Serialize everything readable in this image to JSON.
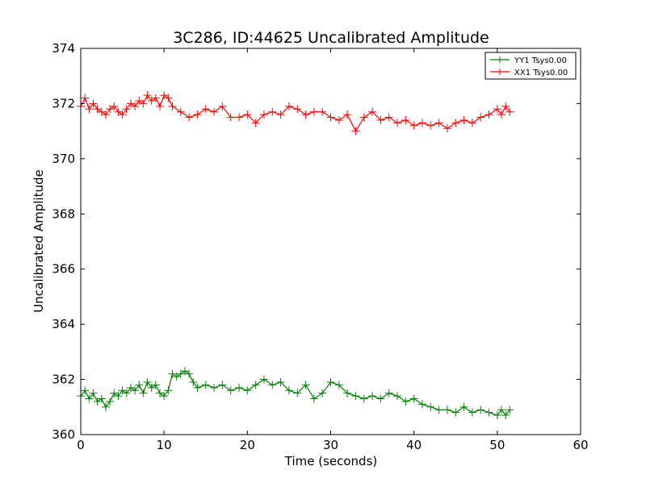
{
  "chart_data": {
    "type": "line",
    "title": "3C286, ID:44625 Uncalibrated Amplitude",
    "xlabel": "Time (seconds)",
    "ylabel": "Uncalibrated Amplitude",
    "xlim": [
      0,
      60
    ],
    "ylim": [
      360,
      374
    ],
    "xticks": [
      0,
      10,
      20,
      30,
      40,
      50,
      60
    ],
    "yticks": [
      360,
      362,
      364,
      366,
      368,
      370,
      372,
      374
    ],
    "grid": false,
    "legend_position": "top-right",
    "marker": "+",
    "series": [
      {
        "name": "YY1 Tsys0.00",
        "color": "#008000",
        "x": [
          0,
          0.5,
          1,
          1.5,
          2,
          2.5,
          3,
          3.5,
          4,
          4.5,
          5,
          5.5,
          6,
          6.5,
          7,
          7.5,
          8,
          8.5,
          9,
          9.5,
          10,
          10.5,
          11,
          11.5,
          12,
          12.5,
          13,
          13.5,
          14,
          15,
          16,
          17,
          18,
          19,
          20,
          21,
          22,
          23,
          24,
          25,
          26,
          27,
          28,
          29,
          30,
          31,
          32,
          33,
          34,
          35,
          36,
          37,
          38,
          39,
          40,
          41,
          42,
          43,
          44,
          45,
          46,
          47,
          48,
          49,
          50,
          50.5,
          51,
          51.5
        ],
        "y": [
          361.4,
          361.6,
          361.3,
          361.5,
          361.2,
          361.3,
          361.0,
          361.2,
          361.5,
          361.4,
          361.6,
          361.5,
          361.7,
          361.6,
          361.8,
          361.5,
          361.9,
          361.7,
          361.8,
          361.5,
          361.4,
          361.6,
          362.2,
          362.1,
          362.2,
          362.3,
          362.2,
          361.9,
          361.7,
          361.8,
          361.7,
          361.8,
          361.6,
          361.7,
          361.6,
          361.8,
          362.0,
          361.8,
          361.9,
          361.6,
          361.5,
          361.8,
          361.3,
          361.5,
          361.9,
          361.8,
          361.5,
          361.4,
          361.3,
          361.4,
          361.3,
          361.5,
          361.4,
          361.2,
          361.3,
          361.1,
          361.0,
          360.9,
          360.9,
          360.8,
          361.0,
          360.8,
          360.9,
          360.8,
          360.7,
          360.9,
          360.7,
          360.9
        ]
      },
      {
        "name": "XX1 Tsys0.00",
        "color": "#ff0000",
        "x": [
          0,
          0.5,
          1,
          1.5,
          2,
          2.5,
          3,
          3.5,
          4,
          4.5,
          5,
          5.5,
          6,
          6.5,
          7,
          7.5,
          8,
          8.5,
          9,
          9.5,
          10,
          10.5,
          11,
          12,
          13,
          14,
          15,
          16,
          17,
          18,
          19,
          20,
          21,
          22,
          23,
          24,
          25,
          26,
          27,
          28,
          29,
          30,
          31,
          32,
          33,
          34,
          35,
          36,
          37,
          38,
          39,
          40,
          41,
          42,
          43,
          44,
          45,
          46,
          47,
          48,
          49,
          50,
          50.5,
          51,
          51.5
        ],
        "y": [
          371.9,
          372.2,
          371.8,
          372.0,
          371.8,
          371.7,
          371.6,
          371.8,
          371.9,
          371.7,
          371.6,
          371.8,
          372.0,
          371.9,
          372.1,
          372.0,
          372.3,
          372.1,
          372.2,
          371.9,
          372.3,
          372.2,
          371.9,
          371.7,
          371.5,
          371.6,
          371.8,
          371.7,
          371.9,
          371.5,
          371.5,
          371.6,
          371.3,
          371.6,
          371.7,
          371.6,
          371.9,
          371.8,
          371.6,
          371.7,
          371.7,
          371.5,
          371.4,
          371.6,
          371.0,
          371.5,
          371.7,
          371.4,
          371.5,
          371.3,
          371.4,
          371.2,
          371.3,
          371.2,
          371.3,
          371.1,
          371.3,
          371.4,
          371.3,
          371.5,
          371.6,
          371.8,
          371.6,
          371.9,
          371.7
        ]
      }
    ]
  }
}
